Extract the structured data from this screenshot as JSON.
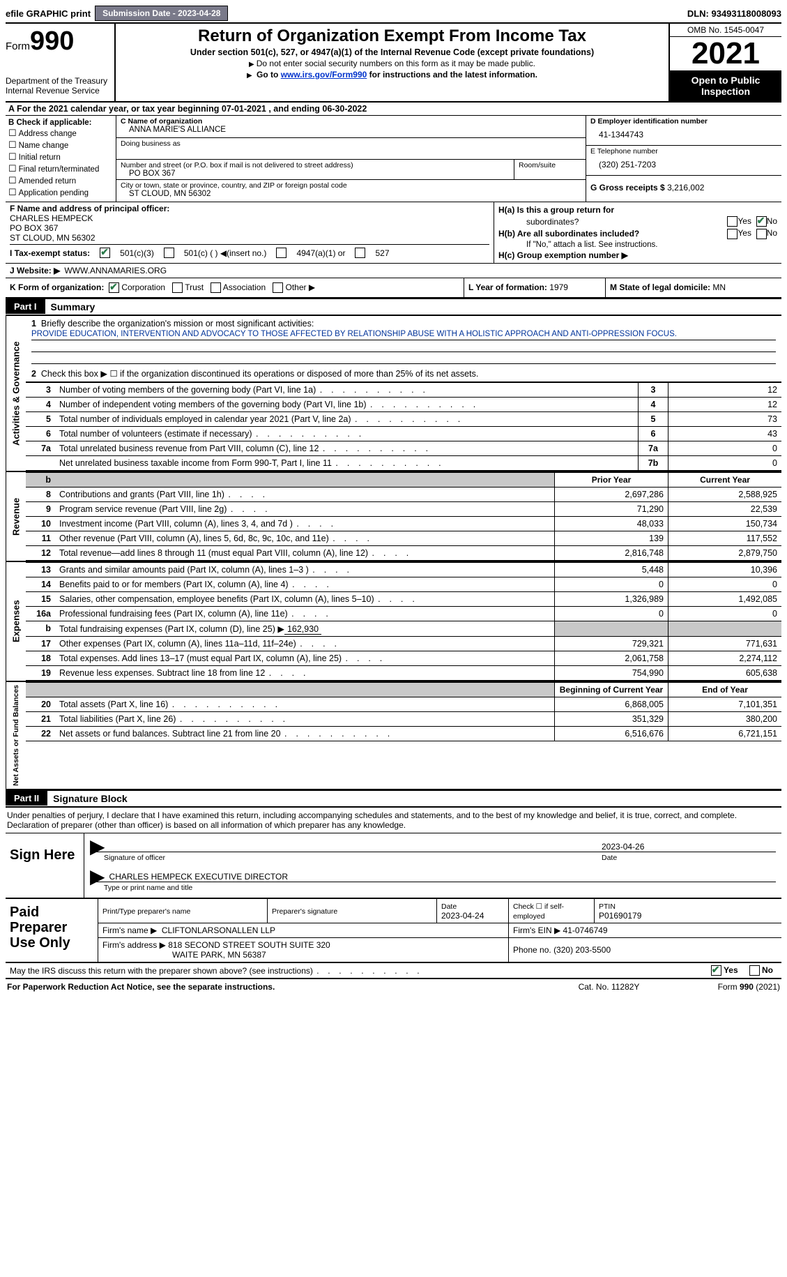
{
  "topbar": {
    "efile": "efile GRAPHIC print",
    "submission": "Submission Date - 2023-04-28",
    "dln": "DLN: 93493118008093"
  },
  "header": {
    "form_word": "Form",
    "form_num": "990",
    "title": "Return of Organization Exempt From Income Tax",
    "subtitle": "Under section 501(c), 527, or 4947(a)(1) of the Internal Revenue Code (except private foundations)",
    "note1": "Do not enter social security numbers on this form as it may be made public.",
    "note2_pre": "Go to ",
    "note2_link": "www.irs.gov/Form990",
    "note2_post": " for instructions and the latest information.",
    "dept": "Department of the Treasury",
    "irs": "Internal Revenue Service",
    "omb": "OMB No. 1545-0047",
    "year": "2021",
    "inspect1": "Open to Public",
    "inspect2": "Inspection"
  },
  "rowA": "A For the 2021 calendar year, or tax year beginning 07-01-2021    , and ending 06-30-2022",
  "secB": {
    "label": "B Check if applicable:",
    "o1": "Address change",
    "o2": "Name change",
    "o3": "Initial return",
    "o4": "Final return/terminated",
    "o5": "Amended return",
    "o6": "Application pending"
  },
  "secC": {
    "name_label": "C Name of organization",
    "name": "ANNA MARIE'S ALLIANCE",
    "dba_label": "Doing business as",
    "addr_label": "Number and street (or P.O. box if mail is not delivered to street address)",
    "room_label": "Room/suite",
    "addr": "PO BOX 367",
    "city_label": "City or town, state or province, country, and ZIP or foreign postal code",
    "city": "ST CLOUD, MN  56302"
  },
  "secD": {
    "ein_label": "D Employer identification number",
    "ein": "41-1344743",
    "tel_label": "E Telephone number",
    "tel": "(320) 251-7203",
    "gross_label": "G Gross receipts $",
    "gross": "3,216,002"
  },
  "secF": {
    "label": "F Name and address of principal officer:",
    "name": "CHARLES HEMPECK",
    "addr1": "PO BOX 367",
    "addr2": "ST CLOUD, MN  56302"
  },
  "secH": {
    "ha": "H(a)  Is this a group return for",
    "ha2": "subordinates?",
    "hb": "H(b)  Are all subordinates included?",
    "hb2": "If \"No,\" attach a list. See instructions.",
    "hc": "H(c)  Group exemption number ▶",
    "yes": "Yes",
    "no": "No"
  },
  "secI": {
    "label": "I    Tax-exempt status:",
    "o1": "501(c)(3)",
    "o2": "501(c) (  ) ◀(insert no.)",
    "o3": "4947(a)(1) or",
    "o4": "527"
  },
  "secJ": {
    "label": "J   Website: ▶",
    "val": "WWW.ANNAMARIES.ORG"
  },
  "secK": {
    "label": "K Form of organization:",
    "o1": "Corporation",
    "o2": "Trust",
    "o3": "Association",
    "o4": "Other ▶"
  },
  "secL": {
    "label": "L Year of formation:",
    "val": "1979"
  },
  "secM": {
    "label": "M State of legal domicile:",
    "val": "MN"
  },
  "partI": {
    "num": "Part I",
    "title": "Summary",
    "line1": "Briefly describe the organization's mission or most significant activities:",
    "mission": "PROVIDE EDUCATION, INTERVENTION AND ADVOCACY TO THOSE AFFECTED BY RELATIONSHIP ABUSE WITH A HOLISTIC APPROACH AND ANTI-OPPRESSION FOCUS.",
    "line2": "Check this box ▶ ☐  if the organization discontinued its operations or disposed of more than 25% of its net assets.",
    "tabs": {
      "ag": "Activities & Governance",
      "rev": "Revenue",
      "exp": "Expenses",
      "na": "Net Assets or Fund Balances"
    },
    "rows_ag": [
      {
        "n": "3",
        "d": "Number of voting members of the governing body (Part VI, line 1a)",
        "b": "3",
        "v": "12"
      },
      {
        "n": "4",
        "d": "Number of independent voting members of the governing body (Part VI, line 1b)",
        "b": "4",
        "v": "12"
      },
      {
        "n": "5",
        "d": "Total number of individuals employed in calendar year 2021 (Part V, line 2a)",
        "b": "5",
        "v": "73"
      },
      {
        "n": "6",
        "d": "Total number of volunteers (estimate if necessary)",
        "b": "6",
        "v": "43"
      },
      {
        "n": "7a",
        "d": "Total unrelated business revenue from Part VIII, column (C), line 12",
        "b": "7a",
        "v": "0"
      },
      {
        "n": "",
        "d": "Net unrelated business taxable income from Form 990-T, Part I, line 11",
        "b": "7b",
        "v": "0"
      }
    ],
    "hdr_b": "b",
    "hdr_py": "Prior Year",
    "hdr_cy": "Current Year",
    "rows_rev": [
      {
        "n": "8",
        "d": "Contributions and grants (Part VIII, line 1h)",
        "py": "2,697,286",
        "cy": "2,588,925"
      },
      {
        "n": "9",
        "d": "Program service revenue (Part VIII, line 2g)",
        "py": "71,290",
        "cy": "22,539"
      },
      {
        "n": "10",
        "d": "Investment income (Part VIII, column (A), lines 3, 4, and 7d )",
        "py": "48,033",
        "cy": "150,734"
      },
      {
        "n": "11",
        "d": "Other revenue (Part VIII, column (A), lines 5, 6d, 8c, 9c, 10c, and 11e)",
        "py": "139",
        "cy": "117,552"
      },
      {
        "n": "12",
        "d": "Total revenue—add lines 8 through 11 (must equal Part VIII, column (A), line 12)",
        "py": "2,816,748",
        "cy": "2,879,750"
      }
    ],
    "rows_exp": [
      {
        "n": "13",
        "d": "Grants and similar amounts paid (Part IX, column (A), lines 1–3 )",
        "py": "5,448",
        "cy": "10,396"
      },
      {
        "n": "14",
        "d": "Benefits paid to or for members (Part IX, column (A), line 4)",
        "py": "0",
        "cy": "0"
      },
      {
        "n": "15",
        "d": "Salaries, other compensation, employee benefits (Part IX, column (A), lines 5–10)",
        "py": "1,326,989",
        "cy": "1,492,085"
      },
      {
        "n": "16a",
        "d": "Professional fundraising fees (Part IX, column (A), line 11e)",
        "py": "0",
        "cy": "0"
      }
    ],
    "row_16b": {
      "n": "b",
      "d": "Total fundraising expenses (Part IX, column (D), line 25) ▶",
      "v": "162,930"
    },
    "rows_exp2": [
      {
        "n": "17",
        "d": "Other expenses (Part IX, column (A), lines 11a–11d, 11f–24e)",
        "py": "729,321",
        "cy": "771,631"
      },
      {
        "n": "18",
        "d": "Total expenses. Add lines 13–17 (must equal Part IX, column (A), line 25)",
        "py": "2,061,758",
        "cy": "2,274,112"
      },
      {
        "n": "19",
        "d": "Revenue less expenses. Subtract line 18 from line 12",
        "py": "754,990",
        "cy": "605,638"
      }
    ],
    "hdr_boy": "Beginning of Current Year",
    "hdr_eoy": "End of Year",
    "rows_na": [
      {
        "n": "20",
        "d": "Total assets (Part X, line 16)",
        "py": "6,868,005",
        "cy": "7,101,351"
      },
      {
        "n": "21",
        "d": "Total liabilities (Part X, line 26)",
        "py": "351,329",
        "cy": "380,200"
      },
      {
        "n": "22",
        "d": "Net assets or fund balances. Subtract line 21 from line 20",
        "py": "6,516,676",
        "cy": "6,721,151"
      }
    ]
  },
  "partII": {
    "num": "Part II",
    "title": "Signature Block",
    "intro": "Under penalties of perjury, I declare that I have examined this return, including accompanying schedules and statements, and to the best of my knowledge and belief, it is true, correct, and complete. Declaration of preparer (other than officer) is based on all information of which preparer has any knowledge.",
    "sign_here": "Sign Here",
    "sig_of": "Signature of officer",
    "sig_date": "2023-04-26",
    "date_label": "Date",
    "officer": "CHARLES HEMPECK  EXECUTIVE DIRECTOR",
    "type_name": "Type or print name and title",
    "paid": "Paid Preparer Use Only",
    "pt_name_label": "Print/Type preparer's name",
    "pt_sig_label": "Preparer's signature",
    "pt_date_label": "Date",
    "pt_date": "2023-04-24",
    "pt_check": "Check ☐ if self-employed",
    "ptin_label": "PTIN",
    "ptin": "P01690179",
    "firm_name_label": "Firm's name    ▶",
    "firm_name": "CLIFTONLARSONALLEN LLP",
    "firm_ein_label": "Firm's EIN ▶",
    "firm_ein": "41-0746749",
    "firm_addr_label": "Firm's address ▶",
    "firm_addr1": "818 SECOND STREET SOUTH SUITE 320",
    "firm_addr2": "WAITE PARK, MN  56387",
    "phone_label": "Phone no.",
    "phone": "(320) 203-5500",
    "discuss": "May the IRS discuss this return with the preparer shown above? (see instructions)"
  },
  "footer": {
    "pra": "For Paperwork Reduction Act Notice, see the separate instructions.",
    "cat": "Cat. No. 11282Y",
    "form": "Form 990 (2021)"
  }
}
